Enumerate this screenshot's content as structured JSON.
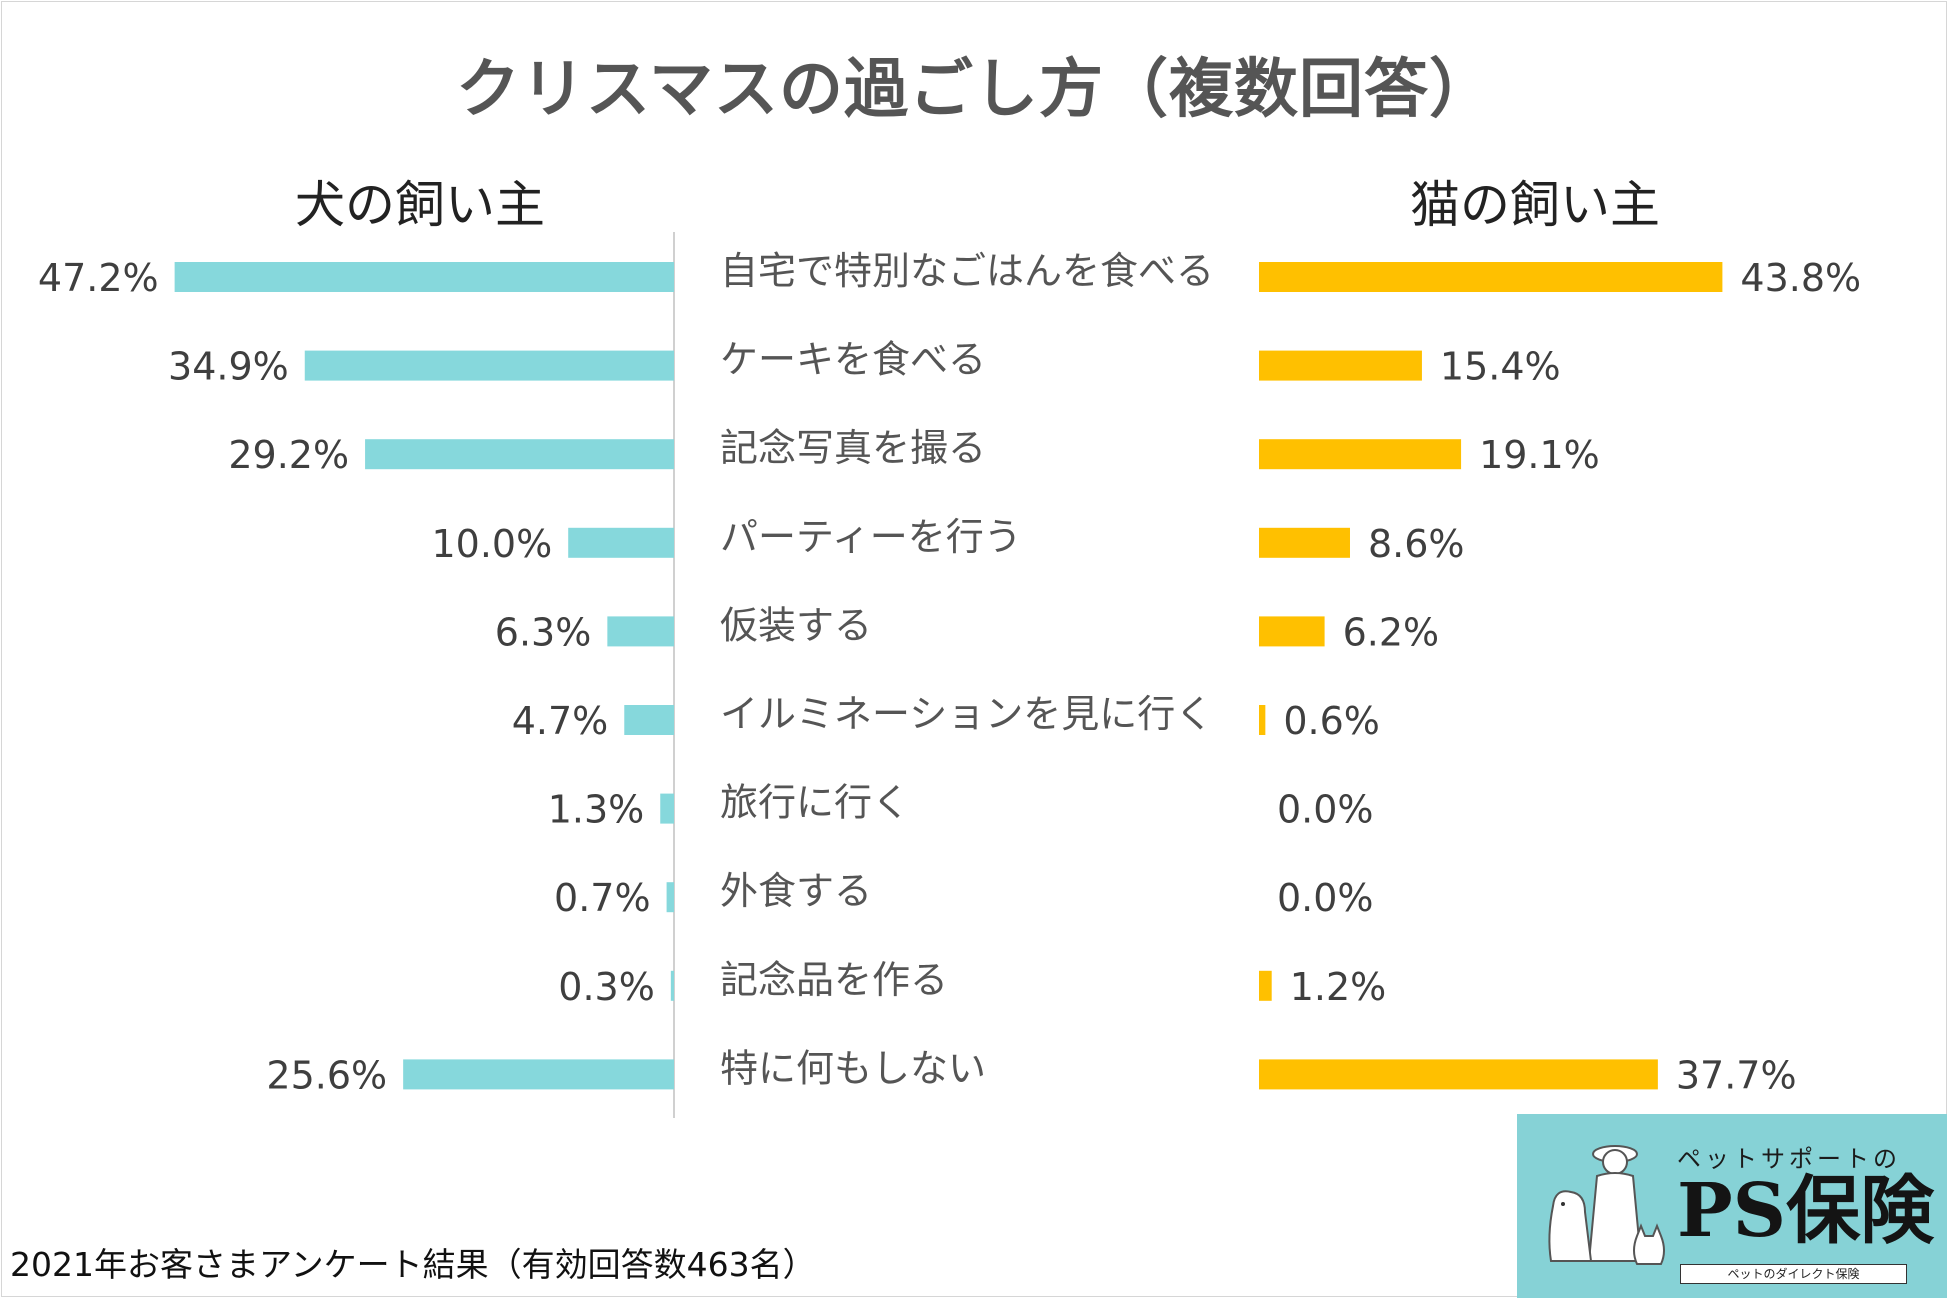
{
  "title": "クリスマスの過ごし方（複数回答）",
  "footnote": "2021年お客さまアンケート結果（有効回答数463名）",
  "logo": {
    "tagline": "ペットサポートの",
    "name": "PS保険",
    "sub": "ペットのダイレクト保険"
  },
  "colors": {
    "dog": "#86d8dc",
    "cat": "#ffc000",
    "axis": "#d0d0d0"
  },
  "chart_data": {
    "type": "bar",
    "title": "クリスマスの過ごし方（複数回答）",
    "categories": [
      "自宅で特別なごはんを食べる",
      "ケーキを食べる",
      "記念写真を撮る",
      "パーティーを行う",
      "仮装する",
      "イルミネーションを見に行く",
      "旅行に行く",
      "外食する",
      "記念品を作る",
      "特に何もしない"
    ],
    "series": [
      {
        "name": "犬の飼い主",
        "values": [
          47.2,
          34.9,
          29.2,
          10.0,
          6.3,
          4.7,
          1.3,
          0.7,
          0.3,
          25.6
        ],
        "labels": [
          "47.2%",
          "34.9%",
          "29.2%",
          "10.0%",
          "6.3%",
          "4.7%",
          "1.3%",
          "0.7%",
          "0.3%",
          "25.6%"
        ]
      },
      {
        "name": "猫の飼い主",
        "values": [
          43.8,
          15.4,
          19.1,
          8.6,
          6.2,
          0.6,
          0.0,
          0.0,
          1.2,
          37.7
        ],
        "labels": [
          "43.8%",
          "15.4%",
          "19.1%",
          "8.6%",
          "6.2%",
          "0.6%",
          "0.0%",
          "0.0%",
          "1.2%",
          "37.7%"
        ]
      }
    ],
    "unit": "%",
    "xlim": [
      0,
      50
    ],
    "layout": "butterfly (dog bars extend left, cat bars extend right, categories in center)"
  }
}
